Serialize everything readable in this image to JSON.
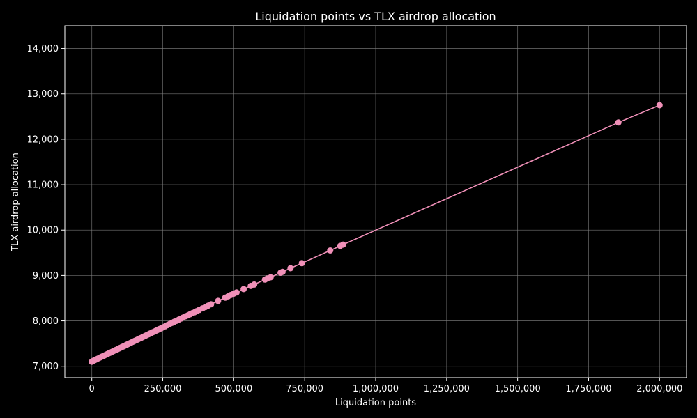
{
  "colors": {
    "background": "#000000",
    "text": "#ffffff",
    "grid": "#808080",
    "series": "#f090b8"
  },
  "chart_data": {
    "type": "line",
    "title": "Liquidation points vs TLX airdrop allocation",
    "xlabel": "Liquidation points",
    "ylabel": "TLX airdrop allocation",
    "xlim": [
      -95000,
      2095000
    ],
    "ylim": [
      6750,
      14500
    ],
    "grid": true,
    "x_ticks": [
      0,
      250000,
      500000,
      750000,
      1000000,
      1250000,
      1500000,
      1750000,
      2000000
    ],
    "x_tick_labels": [
      "0",
      "250,000",
      "500,000",
      "750,000",
      "1,000,000",
      "1,250,000",
      "1,500,000",
      "1,750,000",
      "2,000,000"
    ],
    "y_ticks": [
      7000,
      8000,
      9000,
      10000,
      11000,
      12000,
      13000,
      14000
    ],
    "y_tick_labels": [
      "7,000",
      "8,000",
      "9,000",
      "10,000",
      "11,000",
      "12,000",
      "13,000",
      "14,000"
    ],
    "series": [
      {
        "x": [
          0,
          5000,
          10000,
          15000,
          20000,
          25000,
          30000,
          35000,
          40000,
          45000,
          50000,
          55000,
          60000,
          65000,
          70000,
          75000,
          80000,
          85000,
          90000,
          95000,
          100000,
          105000,
          110000,
          115000,
          120000,
          125000,
          130000,
          135000,
          140000,
          145000,
          150000,
          155000,
          160000,
          165000,
          170000,
          175000,
          180000,
          185000,
          190000,
          195000,
          200000,
          205000,
          210000,
          215000,
          220000,
          225000,
          230000,
          235000,
          240000,
          245000,
          250000,
          258000,
          266000,
          274000,
          282000,
          290000,
          298000,
          306000,
          314000,
          322000,
          330000,
          338000,
          346000,
          354000,
          362000,
          370000,
          378000,
          390000,
          400000,
          410000,
          420000,
          445000,
          470000,
          480000,
          490000,
          500000,
          510000,
          535000,
          560000,
          572000,
          610000,
          618000,
          630000,
          665000,
          672000,
          700000,
          740000,
          840000,
          875000,
          885000,
          1855000,
          2000000
        ],
        "y": [
          7100,
          7120,
          7135,
          7150,
          7165,
          7180,
          7195,
          7210,
          7225,
          7240,
          7255,
          7270,
          7285,
          7300,
          7315,
          7330,
          7345,
          7360,
          7375,
          7390,
          7405,
          7420,
          7435,
          7450,
          7465,
          7480,
          7495,
          7510,
          7525,
          7540,
          7555,
          7570,
          7585,
          7600,
          7615,
          7630,
          7645,
          7660,
          7675,
          7690,
          7705,
          7720,
          7735,
          7750,
          7765,
          7780,
          7795,
          7810,
          7825,
          7840,
          7855,
          7880,
          7905,
          7930,
          7955,
          7980,
          8000,
          8025,
          8050,
          8075,
          8100,
          8120,
          8145,
          8170,
          8190,
          8215,
          8240,
          8275,
          8305,
          8335,
          8365,
          8440,
          8510,
          8540,
          8570,
          8600,
          8625,
          8700,
          8770,
          8800,
          8910,
          8930,
          8960,
          9060,
          9080,
          9160,
          9270,
          9550,
          9650,
          9680,
          12370,
          12750
        ]
      }
    ]
  }
}
